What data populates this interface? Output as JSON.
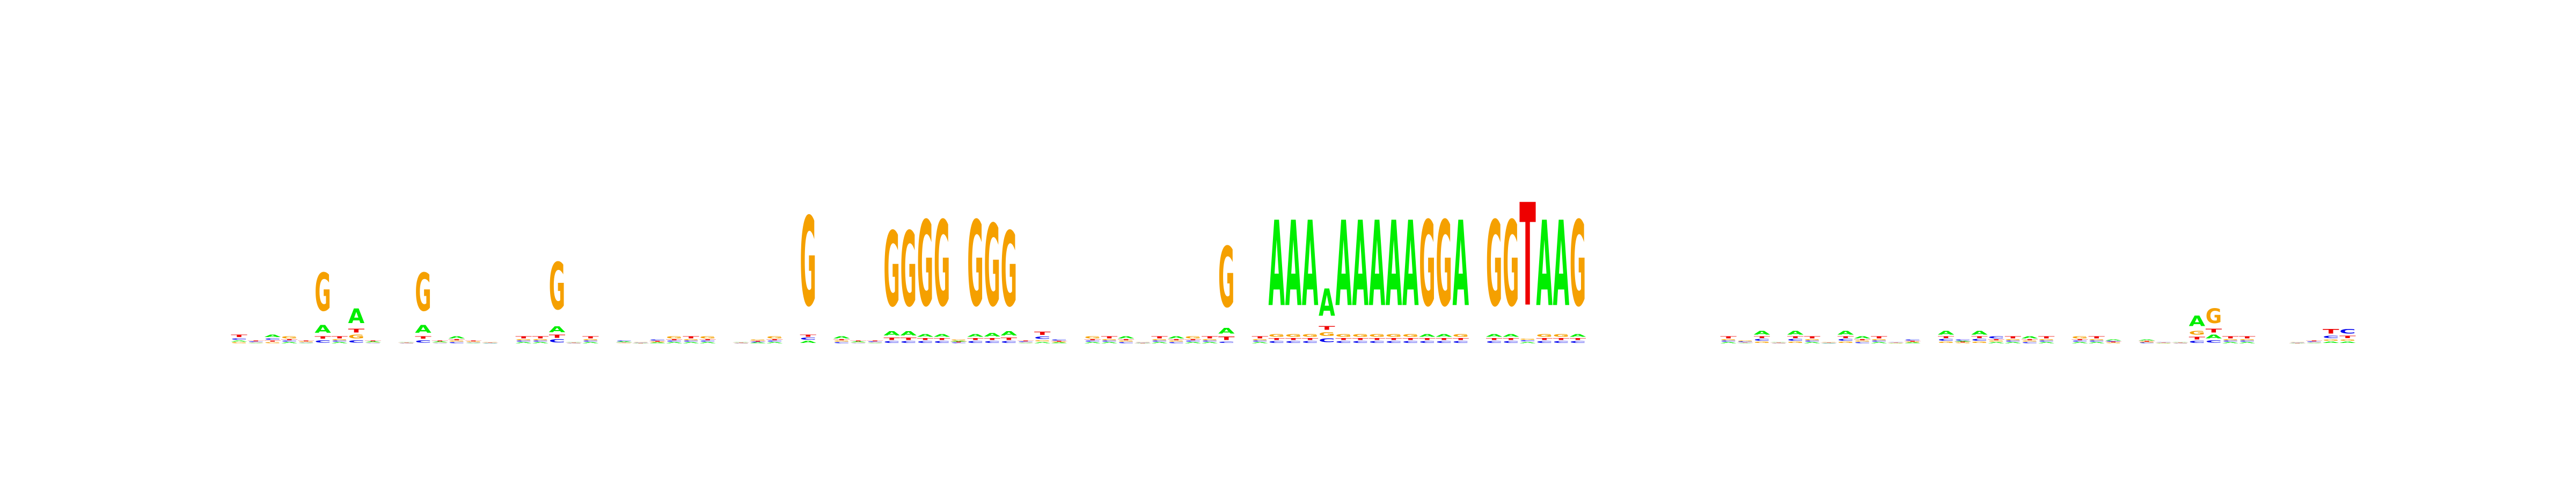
{
  "chart_data": {
    "type": "sequence-logo",
    "alphabet": [
      "A",
      "C",
      "G",
      "T"
    ],
    "colors": {
      "A": "#00ee00",
      "C": "#0000ee",
      "G": "#f5a000",
      "T": "#ee0000"
    },
    "grid": false,
    "legend": "none",
    "title": "",
    "xlabel": "",
    "ylabel": "",
    "ylim": [
      0,
      1
    ],
    "positions": [
      {
        "A": 0.2,
        "C": 0.25,
        "G": 0.15,
        "T": 0.4
      },
      {
        "A": 0.2,
        "C": 0.3,
        "G": 0.2,
        "T": 0.3
      },
      {
        "A": 0.4,
        "C": 0.25,
        "G": 0.15,
        "T": 0.2
      },
      {
        "A": 0.2,
        "C": 0.2,
        "G": 0.4,
        "T": 0.2
      },
      {
        "A": 0.2,
        "C": 0.2,
        "G": 0.3,
        "T": 0.3
      },
      {
        "A": 0.15,
        "C": 0.05,
        "G": 0.75,
        "T": 0.05
      },
      {
        "A": 0.2,
        "C": 0.2,
        "G": 0.2,
        "T": 0.4
      },
      {
        "A": 0.6,
        "C": 0.1,
        "G": 0.15,
        "T": 0.15
      },
      {
        "A": 0.3,
        "C": 0.2,
        "G": 0.2,
        "T": 0.3
      },
      {
        "A": 0.25,
        "C": 0.25,
        "G": 0.25,
        "T": 0.25
      },
      {
        "A": 0.3,
        "C": 0.25,
        "G": 0.2,
        "T": 0.25
      },
      {
        "A": 0.15,
        "C": 0.05,
        "G": 0.75,
        "T": 0.05
      },
      {
        "A": 0.3,
        "C": 0.2,
        "G": 0.2,
        "T": 0.3
      },
      {
        "A": 0.4,
        "C": 0.2,
        "G": 0.2,
        "T": 0.2
      },
      {
        "A": 0.2,
        "C": 0.2,
        "G": 0.3,
        "T": 0.3
      },
      {
        "A": 0.25,
        "C": 0.2,
        "G": 0.3,
        "T": 0.25
      },
      {
        "A": 0.25,
        "C": 0.25,
        "G": 0.25,
        "T": 0.25
      },
      {
        "A": 0.2,
        "C": 0.2,
        "G": 0.2,
        "T": 0.4
      },
      {
        "A": 0.2,
        "C": 0.2,
        "G": 0.2,
        "T": 0.4
      },
      {
        "A": 0.1,
        "C": 0.05,
        "G": 0.8,
        "T": 0.05
      },
      {
        "A": 0.3,
        "C": 0.25,
        "G": 0.2,
        "T": 0.25
      },
      {
        "A": 0.2,
        "C": 0.2,
        "G": 0.2,
        "T": 0.4
      },
      {
        "A": 0.25,
        "C": 0.25,
        "G": 0.25,
        "T": 0.25
      },
      {
        "A": 0.3,
        "C": 0.3,
        "G": 0.2,
        "T": 0.2
      },
      {
        "A": 0.25,
        "C": 0.25,
        "G": 0.3,
        "T": 0.2
      },
      {
        "A": 0.2,
        "C": 0.35,
        "G": 0.2,
        "T": 0.25
      },
      {
        "A": 0.2,
        "C": 0.2,
        "G": 0.4,
        "T": 0.2
      },
      {
        "A": 0.2,
        "C": 0.2,
        "G": 0.2,
        "T": 0.4
      },
      {
        "A": 0.2,
        "C": 0.2,
        "G": 0.4,
        "T": 0.2
      },
      {
        "A": 0.25,
        "C": 0.25,
        "G": 0.25,
        "T": 0.25
      },
      {
        "A": 0.3,
        "C": 0.25,
        "G": 0.2,
        "T": 0.25
      },
      {
        "A": 0.2,
        "C": 0.2,
        "G": 0.35,
        "T": 0.25
      },
      {
        "A": 0.2,
        "C": 0.2,
        "G": 0.4,
        "T": 0.2
      },
      {
        "A": 0.25,
        "C": 0.25,
        "G": 0.25,
        "T": 0.25
      },
      {
        "A": 0.02,
        "C": 0.02,
        "G": 0.94,
        "T": 0.02
      },
      {
        "A": 0.25,
        "C": 0.25,
        "G": 0.25,
        "T": 0.25
      },
      {
        "A": 0.4,
        "C": 0.2,
        "G": 0.2,
        "T": 0.2
      },
      {
        "A": 0.3,
        "C": 0.2,
        "G": 0.2,
        "T": 0.3
      },
      {
        "A": 0.2,
        "C": 0.3,
        "G": 0.2,
        "T": 0.3
      },
      {
        "A": 0.05,
        "C": 0.02,
        "G": 0.9,
        "T": 0.03
      },
      {
        "A": 0.05,
        "C": 0.02,
        "G": 0.9,
        "T": 0.03
      },
      {
        "A": 0.03,
        "C": 0.02,
        "G": 0.93,
        "T": 0.02
      },
      {
        "A": 0.03,
        "C": 0.02,
        "G": 0.93,
        "T": 0.02
      },
      {
        "A": 0.25,
        "C": 0.2,
        "G": 0.35,
        "T": 0.2
      },
      {
        "A": 0.03,
        "C": 0.02,
        "G": 0.93,
        "T": 0.02
      },
      {
        "A": 0.04,
        "C": 0.02,
        "G": 0.92,
        "T": 0.02
      },
      {
        "A": 0.05,
        "C": 0.02,
        "G": 0.9,
        "T": 0.03
      },
      {
        "A": 0.2,
        "C": 0.3,
        "G": 0.2,
        "T": 0.3
      },
      {
        "A": 0.15,
        "C": 0.3,
        "G": 0.15,
        "T": 0.4
      },
      {
        "A": 0.2,
        "C": 0.35,
        "G": 0.2,
        "T": 0.25
      },
      {
        "A": 0.25,
        "C": 0.25,
        "G": 0.25,
        "T": 0.25
      },
      {
        "A": 0.2,
        "C": 0.2,
        "G": 0.4,
        "T": 0.2
      },
      {
        "A": 0.2,
        "C": 0.2,
        "G": 0.2,
        "T": 0.4
      },
      {
        "A": 0.4,
        "C": 0.2,
        "G": 0.2,
        "T": 0.2
      },
      {
        "A": 0.25,
        "C": 0.25,
        "G": 0.3,
        "T": 0.2
      },
      {
        "A": 0.2,
        "C": 0.2,
        "G": 0.2,
        "T": 0.4
      },
      {
        "A": 0.4,
        "C": 0.2,
        "G": 0.2,
        "T": 0.2
      },
      {
        "A": 0.2,
        "C": 0.2,
        "G": 0.4,
        "T": 0.2
      },
      {
        "A": 0.2,
        "C": 0.2,
        "G": 0.2,
        "T": 0.4
      },
      {
        "A": 0.08,
        "C": 0.02,
        "G": 0.85,
        "T": 0.05
      },
      {
        "A": 0.25,
        "C": 0.25,
        "G": 0.25,
        "T": 0.25
      },
      {
        "A": 0.2,
        "C": 0.2,
        "G": 0.2,
        "T": 0.4
      },
      {
        "A": 0.93,
        "C": 0.02,
        "G": 0.03,
        "T": 0.02
      },
      {
        "A": 0.93,
        "C": 0.02,
        "G": 0.03,
        "T": 0.02
      },
      {
        "A": 0.93,
        "C": 0.02,
        "G": 0.03,
        "T": 0.02
      },
      {
        "A": 0.7,
        "C": 0.1,
        "G": 0.1,
        "T": 0.1
      },
      {
        "A": 0.93,
        "C": 0.02,
        "G": 0.03,
        "T": 0.02
      },
      {
        "A": 0.93,
        "C": 0.02,
        "G": 0.03,
        "T": 0.02
      },
      {
        "A": 0.93,
        "C": 0.02,
        "G": 0.03,
        "T": 0.02
      },
      {
        "A": 0.93,
        "C": 0.02,
        "G": 0.03,
        "T": 0.02
      },
      {
        "A": 0.93,
        "C": 0.02,
        "G": 0.03,
        "T": 0.02
      },
      {
        "A": 0.03,
        "C": 0.02,
        "G": 0.93,
        "T": 0.02
      },
      {
        "A": 0.03,
        "C": 0.02,
        "G": 0.93,
        "T": 0.02
      },
      {
        "A": 0.93,
        "C": 0.02,
        "G": 0.03,
        "T": 0.02
      },
      {
        "A": 0.25,
        "C": 0.25,
        "G": 0.25,
        "T": 0.25
      },
      {
        "A": 0.03,
        "C": 0.02,
        "G": 0.93,
        "T": 0.02
      },
      {
        "A": 0.03,
        "C": 0.02,
        "G": 0.93,
        "T": 0.02
      },
      {
        "A": 0.01,
        "C": 0.01,
        "G": 0.01,
        "T": 0.97
      },
      {
        "A": 0.93,
        "C": 0.02,
        "G": 0.03,
        "T": 0.02
      },
      {
        "A": 0.93,
        "C": 0.02,
        "G": 0.03,
        "T": 0.02
      },
      {
        "A": 0.03,
        "C": 0.02,
        "G": 0.93,
        "T": 0.02
      },
      {
        "A": 0.25,
        "C": 0.25,
        "G": 0.25,
        "T": 0.25
      },
      {
        "A": 0.25,
        "C": 0.25,
        "G": 0.25,
        "T": 0.25
      },
      {
        "A": 0.25,
        "C": 0.25,
        "G": 0.25,
        "T": 0.25
      },
      {
        "A": 0.25,
        "C": 0.25,
        "G": 0.25,
        "T": 0.25
      },
      {
        "A": 0.25,
        "C": 0.25,
        "G": 0.25,
        "T": 0.25
      },
      {
        "A": 0.25,
        "C": 0.25,
        "G": 0.25,
        "T": 0.25
      },
      {
        "A": 0.25,
        "C": 0.25,
        "G": 0.25,
        "T": 0.25
      },
      {
        "A": 0.25,
        "C": 0.25,
        "G": 0.25,
        "T": 0.25
      },
      {
        "A": 0.2,
        "C": 0.2,
        "G": 0.2,
        "T": 0.4
      },
      {
        "A": 0.2,
        "C": 0.3,
        "G": 0.3,
        "T": 0.2
      },
      {
        "A": 0.45,
        "C": 0.2,
        "G": 0.15,
        "T": 0.2
      },
      {
        "A": 0.3,
        "C": 0.25,
        "G": 0.2,
        "T": 0.25
      },
      {
        "A": 0.45,
        "C": 0.2,
        "G": 0.15,
        "T": 0.2
      },
      {
        "A": 0.2,
        "C": 0.2,
        "G": 0.2,
        "T": 0.4
      },
      {
        "A": 0.2,
        "C": 0.25,
        "G": 0.3,
        "T": 0.25
      },
      {
        "A": 0.45,
        "C": 0.2,
        "G": 0.15,
        "T": 0.2
      },
      {
        "A": 0.4,
        "C": 0.2,
        "G": 0.2,
        "T": 0.2
      },
      {
        "A": 0.2,
        "C": 0.2,
        "G": 0.2,
        "T": 0.4
      },
      {
        "A": 0.25,
        "C": 0.3,
        "G": 0.2,
        "T": 0.25
      },
      {
        "A": 0.2,
        "C": 0.35,
        "G": 0.2,
        "T": 0.25
      },
      {
        "A": 0.25,
        "C": 0.25,
        "G": 0.25,
        "T": 0.25
      },
      {
        "A": 0.45,
        "C": 0.2,
        "G": 0.15,
        "T": 0.2
      },
      {
        "A": 0.25,
        "C": 0.35,
        "G": 0.2,
        "T": 0.2
      },
      {
        "A": 0.45,
        "C": 0.2,
        "G": 0.15,
        "T": 0.2
      },
      {
        "A": 0.2,
        "C": 0.4,
        "G": 0.2,
        "T": 0.2
      },
      {
        "A": 0.2,
        "C": 0.2,
        "G": 0.2,
        "T": 0.4
      },
      {
        "A": 0.4,
        "C": 0.2,
        "G": 0.2,
        "T": 0.2
      },
      {
        "A": 0.2,
        "C": 0.2,
        "G": 0.2,
        "T": 0.4
      },
      {
        "A": 0.25,
        "C": 0.25,
        "G": 0.25,
        "T": 0.25
      },
      {
        "A": 0.2,
        "C": 0.2,
        "G": 0.4,
        "T": 0.2
      },
      {
        "A": 0.2,
        "C": 0.2,
        "G": 0.2,
        "T": 0.4
      },
      {
        "A": 0.35,
        "C": 0.25,
        "G": 0.2,
        "T": 0.2
      },
      {
        "A": 0.25,
        "C": 0.25,
        "G": 0.25,
        "T": 0.25
      },
      {
        "A": 0.35,
        "C": 0.2,
        "G": 0.2,
        "T": 0.25
      },
      {
        "A": 0.25,
        "C": 0.3,
        "G": 0.2,
        "T": 0.25
      },
      {
        "A": 0.3,
        "C": 0.25,
        "G": 0.2,
        "T": 0.25
      },
      {
        "A": 0.55,
        "C": 0.1,
        "G": 0.2,
        "T": 0.15
      },
      {
        "A": 0.15,
        "C": 0.1,
        "G": 0.6,
        "T": 0.15
      },
      {
        "A": 0.2,
        "C": 0.2,
        "G": 0.2,
        "T": 0.4
      },
      {
        "A": 0.2,
        "C": 0.2,
        "G": 0.2,
        "T": 0.4
      },
      {
        "A": 0.25,
        "C": 0.25,
        "G": 0.25,
        "T": 0.25
      },
      {
        "A": 0.25,
        "C": 0.25,
        "G": 0.25,
        "T": 0.25
      },
      {
        "A": 0.25,
        "C": 0.25,
        "G": 0.3,
        "T": 0.2
      },
      {
        "A": 0.2,
        "C": 0.3,
        "G": 0.2,
        "T": 0.3
      },
      {
        "A": 0.15,
        "C": 0.25,
        "G": 0.15,
        "T": 0.45
      },
      {
        "A": 0.15,
        "C": 0.45,
        "G": 0.15,
        "T": 0.25
      }
    ]
  }
}
